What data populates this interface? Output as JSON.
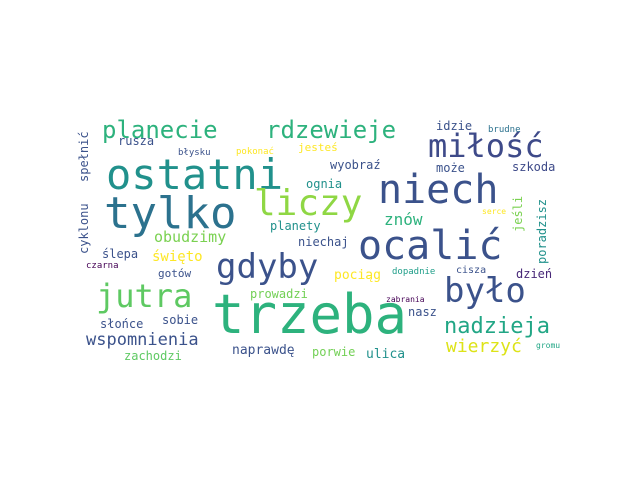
{
  "word_cloud": {
    "words": [
      {
        "text": "trzeba",
        "color": "#2db27d"
      },
      {
        "text": "ocalić",
        "color": "#3b528b"
      },
      {
        "text": "tylko",
        "color": "#2c728e"
      },
      {
        "text": "ostatni",
        "color": "#21918c"
      },
      {
        "text": "niech",
        "color": "#3b528b"
      },
      {
        "text": "liczy",
        "color": "#8fd744"
      },
      {
        "text": "gdyby",
        "color": "#3b528b"
      },
      {
        "text": "jutra",
        "color": "#5ec962"
      },
      {
        "text": "było",
        "color": "#3b528b"
      },
      {
        "text": "miłość",
        "color": "#3e4a89"
      },
      {
        "text": "planecie",
        "color": "#2db27d"
      },
      {
        "text": "rdzewieje",
        "color": "#2db27d"
      },
      {
        "text": "nadzieja",
        "color": "#21a685"
      },
      {
        "text": "wspomnienia",
        "color": "#3b528b"
      },
      {
        "text": "wierzyć",
        "color": "#dde318"
      },
      {
        "text": "obudzimy",
        "color": "#7ad151"
      },
      {
        "text": "idzie",
        "color": "#3b528b"
      },
      {
        "text": "brudne",
        "color": "#2c728e"
      },
      {
        "text": "rusza",
        "color": "#3b528b"
      },
      {
        "text": "błysku",
        "color": "#3b528b"
      },
      {
        "text": "pokonać",
        "color": "#fde725"
      },
      {
        "text": "jesteś",
        "color": "#fde725"
      },
      {
        "text": "może",
        "color": "#3b528b"
      },
      {
        "text": "wyobraź",
        "color": "#3b528b"
      },
      {
        "text": "szkoda",
        "color": "#3e4a89"
      },
      {
        "text": "ognia",
        "color": "#21918c"
      },
      {
        "text": "jeśli",
        "color": "#7ad151"
      },
      {
        "text": "poradzisz",
        "color": "#21918c"
      },
      {
        "text": "serce",
        "color": "#fde725"
      },
      {
        "text": "znów",
        "color": "#2db27d"
      },
      {
        "text": "planety",
        "color": "#21918c"
      },
      {
        "text": "niechaj",
        "color": "#3b528b"
      },
      {
        "text": "ślepa",
        "color": "#3b528b"
      },
      {
        "text": "święto",
        "color": "#fde725"
      },
      {
        "text": "czarna",
        "color": "#440154"
      },
      {
        "text": "pociąg",
        "color": "#fde725"
      },
      {
        "text": "dopadnie",
        "color": "#1f9e89"
      },
      {
        "text": "cisza",
        "color": "#3b528b"
      },
      {
        "text": "dzień",
        "color": "#482878"
      },
      {
        "text": "gotów",
        "color": "#3b528b"
      },
      {
        "text": "zabrania",
        "color": "#440154"
      },
      {
        "text": "nasz",
        "color": "#3b528b"
      },
      {
        "text": "prowadzi",
        "color": "#73d056"
      },
      {
        "text": "słońce",
        "color": "#3b528b"
      },
      {
        "text": "sobie",
        "color": "#3b528b"
      },
      {
        "text": "naprawdę",
        "color": "#3b528b"
      },
      {
        "text": "porwie",
        "color": "#73d056"
      },
      {
        "text": "ulica",
        "color": "#21918c"
      },
      {
        "text": "gromu",
        "color": "#21a685"
      },
      {
        "text": "zachodzi",
        "color": "#5ec962"
      },
      {
        "text": "cyklonu",
        "color": "#3b528b"
      },
      {
        "text": "spełnić",
        "color": "#3b528b"
      }
    ]
  }
}
